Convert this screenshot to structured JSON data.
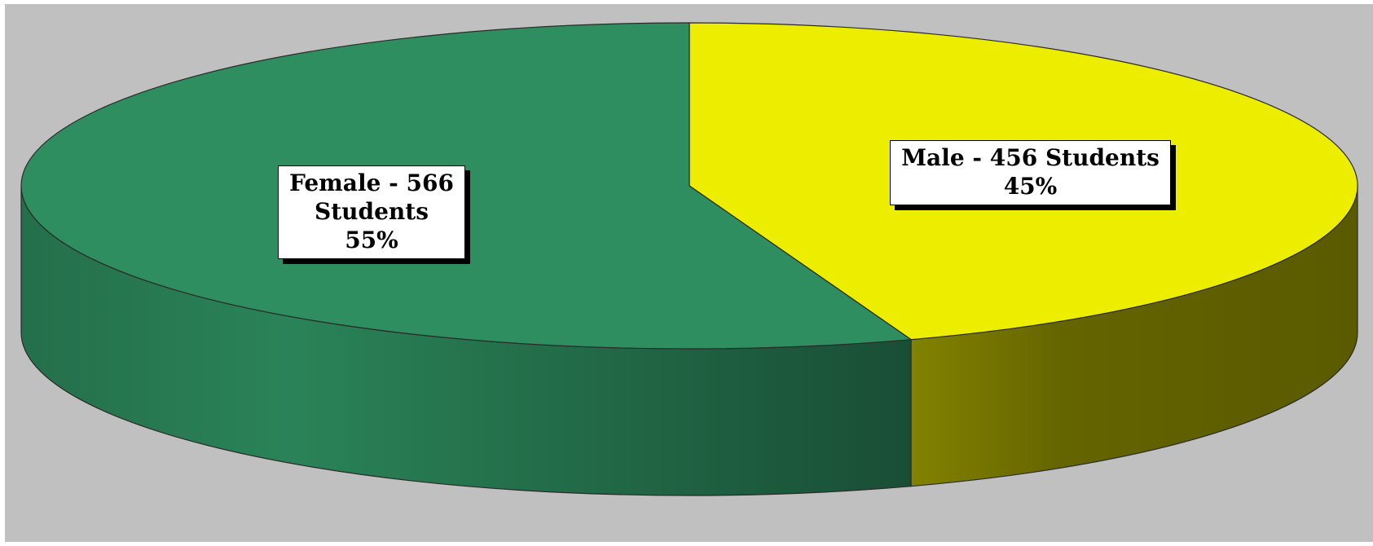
{
  "chart_data": {
    "type": "pie",
    "style": "3d",
    "title": "",
    "categories": [
      "Female",
      "Male"
    ],
    "values": [
      566,
      456
    ],
    "percentages": [
      55,
      45
    ],
    "colors": {
      "Female": "#2e8e60",
      "Male": "#eded00"
    },
    "labels": [
      {
        "lines": [
          "Female - 566",
          "Students",
          "55%"
        ]
      },
      {
        "lines": [
          "Male - 456 Students",
          "45%"
        ]
      }
    ]
  },
  "background_color": "#c0c0c0"
}
